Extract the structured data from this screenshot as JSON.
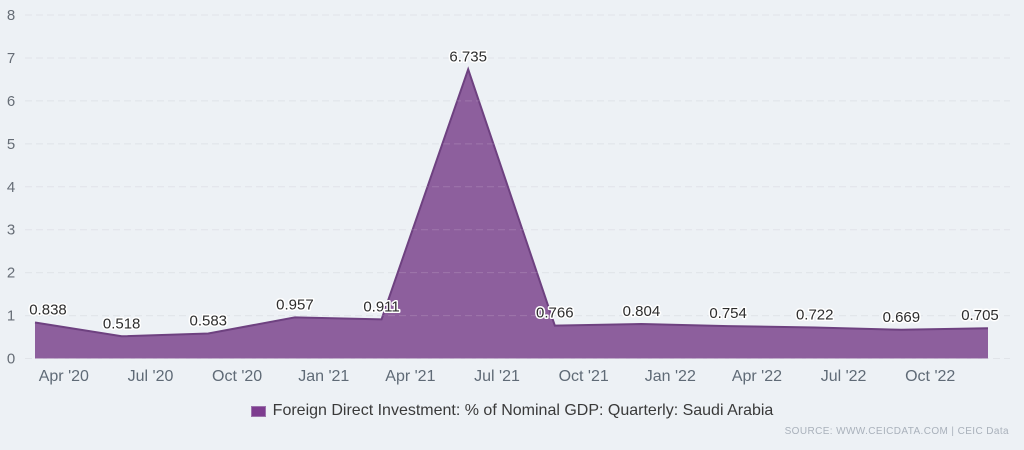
{
  "chart": {
    "legend": {
      "label": "Foreign Direct Investment: % of Nominal GDP: Quarterly: Saudi Arabia",
      "swatch_color": "#7d3c8f"
    },
    "source_credit": "SOURCE: WWW.CEICDATA.COM | CEIC Data",
    "colors": {
      "background": "#edf1f5",
      "grid": "#dce0e5",
      "area_fill": "#8d5f9d",
      "area_line": "#6e4180",
      "y_axis_text": "#666d76",
      "x_axis_text": "#5f6a76",
      "data_label_text": "#2d2d2d",
      "data_label_halo": "#ffffff",
      "source_text": "#a9b1bb"
    }
  },
  "chart_data": {
    "type": "area",
    "title": "",
    "xlabel": "",
    "ylabel": "",
    "series": [
      {
        "name": "Foreign Direct Investment: % of Nominal GDP: Quarterly: Saudi Arabia",
        "values": [
          0.838,
          0.518,
          0.583,
          0.957,
          0.911,
          6.735,
          0.766,
          0.804,
          0.754,
          0.722,
          0.669,
          0.705
        ],
        "data_labels": [
          "0.838",
          "0.518",
          "0.583",
          "0.957",
          "0.911",
          "6.735",
          "0.766",
          "0.804",
          "0.754",
          "0.722",
          "0.669",
          "0.705"
        ]
      }
    ],
    "x_tick_labels": [
      "Apr '20",
      "Jul '20",
      "Oct '20",
      "Jan '21",
      "Apr '21",
      "Jul '21",
      "Oct '21",
      "Jan '22",
      "Apr '22",
      "Jul '22",
      "Oct '22"
    ],
    "x_tick_offset_fraction": 0.333,
    "yticks": [
      0,
      1,
      2,
      3,
      4,
      5,
      6,
      7,
      8
    ],
    "ylim": [
      0,
      8
    ],
    "grid": "dashed-horizontal",
    "legend_position": "bottom-center"
  }
}
